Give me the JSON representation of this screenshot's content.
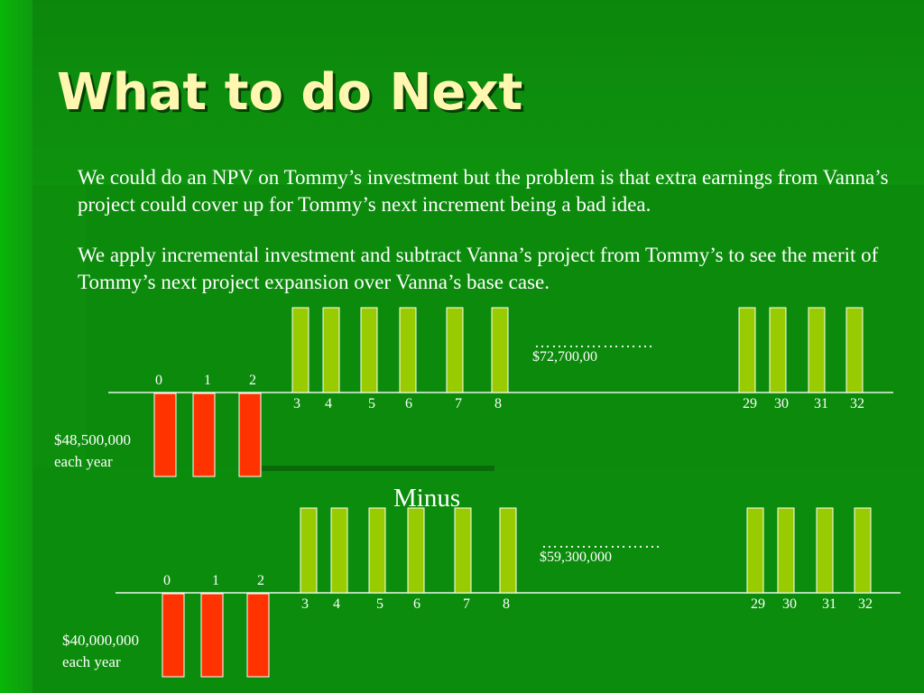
{
  "title": "What to do Next",
  "paragraphs": [
    "We could do an NPV on Tommy’s investment but the problem is that extra earnings from Vanna’s project could cover up for Tommy’s next increment being a bad idea.",
    "We apply incremental investment and subtract Vanna’s project from Tommy’s to see the merit of Tommy’s next project expansion over Vanna’s base case."
  ],
  "minus_label": "Minus",
  "colors": {
    "background": "#0d8f0d",
    "title": "#fff6b0",
    "inflow_bar": "#99cc00",
    "outflow_bar": "#ff3300",
    "axis": "#e8f5e8"
  },
  "timelines": [
    {
      "outflow_periods": [
        "0",
        "1",
        "2"
      ],
      "inflow_periods": [
        "3",
        "4",
        "5",
        "6",
        "7",
        "8",
        "29",
        "30",
        "31",
        "32"
      ],
      "dots": "…………………",
      "inflow_amount": "$72,700,00",
      "outflow_amount": "$48,500,000",
      "outflow_note": "each year"
    },
    {
      "outflow_periods": [
        "0",
        "1",
        "2"
      ],
      "inflow_periods": [
        "3",
        "4",
        "5",
        "6",
        "7",
        "8",
        "29",
        "30",
        "31",
        "32"
      ],
      "dots": "…………………",
      "inflow_amount": "$59,300,000",
      "outflow_amount": "$40,000,000",
      "outflow_note": "each year"
    }
  ]
}
